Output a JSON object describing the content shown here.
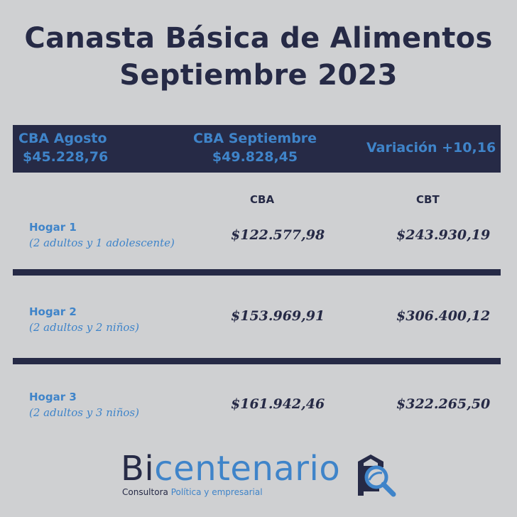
{
  "title": {
    "line1": "Canasta Básica de Alimentos",
    "line2": "Septiembre 2023"
  },
  "band": {
    "agosto_label": "CBA Agosto",
    "agosto_value": "$45.228,76",
    "septiembre_label": "CBA Septiembre",
    "septiembre_value": "$49.828,45",
    "variacion": "Variación +10,16"
  },
  "columns": {
    "cba": "CBA",
    "cbt": "CBT"
  },
  "rows": [
    {
      "name": "Hogar 1",
      "detail": "(2 adultos y 1 adolescente)",
      "cba": "$122.577,98",
      "cbt": "$243.930,19"
    },
    {
      "name": "Hogar 2",
      "detail": "(2 adultos y 2 niños)",
      "cba": "$153.969,91",
      "cbt": "$306.400,12"
    },
    {
      "name": "Hogar 3",
      "detail": "(2 adultos y 3 niños)",
      "cba": "$161.942,46",
      "cbt": "$322.265,50"
    }
  ],
  "logo": {
    "prefix": "Bi",
    "suffix": "centenario",
    "tag_a": "Consultora",
    "tag_b": "Política y empresarial",
    "icon": "house-magnifier-icon"
  },
  "colors": {
    "navy": "#262a46",
    "blue": "#3f84c9",
    "background": "#cfd0d2"
  }
}
